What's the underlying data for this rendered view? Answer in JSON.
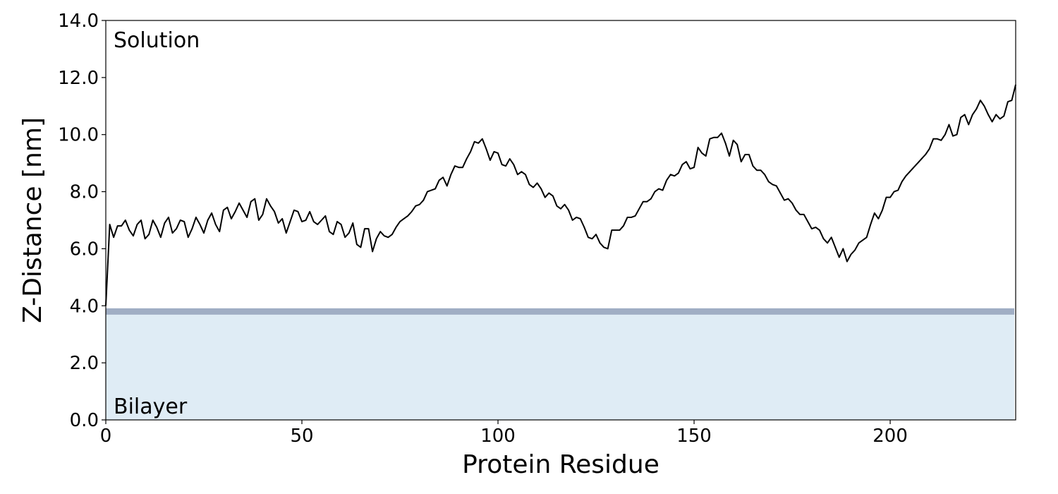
{
  "chart_data": {
    "type": "line",
    "xlabel": "Protein Residue",
    "ylabel": "Z-Distance [nm]",
    "annotations": [
      "Solution",
      "Bilayer"
    ],
    "bilayer_surface": 3.8,
    "bilayer_fill": "#dfecf5",
    "bilayer_edge": "#a0aec4",
    "color": "#000000",
    "xlim": [
      0,
      232
    ],
    "xticks": [
      0,
      50,
      100,
      150,
      200
    ],
    "ylim": [
      0,
      14
    ],
    "yticks": [
      {
        "value": 0,
        "label": "0.0"
      },
      {
        "value": 2,
        "label": "2.0"
      },
      {
        "value": 4,
        "label": "4.0"
      },
      {
        "value": 6,
        "label": "6.0"
      },
      {
        "value": 8,
        "label": "8.0"
      },
      {
        "value": 10,
        "label": "10.0"
      },
      {
        "value": 12,
        "label": "12.0"
      },
      {
        "value": 14,
        "label": "14.0"
      }
    ],
    "x": [
      0,
      1,
      2,
      3,
      4,
      5,
      6,
      7,
      8,
      9,
      10,
      11,
      12,
      13,
      14,
      15,
      16,
      17,
      18,
      19,
      20,
      21,
      22,
      23,
      24,
      25,
      26,
      27,
      28,
      29,
      30,
      31,
      32,
      33,
      34,
      35,
      36,
      37,
      38,
      39,
      40,
      41,
      42,
      43,
      44,
      45,
      46,
      47,
      48,
      49,
      50,
      51,
      52,
      53,
      54,
      55,
      56,
      57,
      58,
      59,
      60,
      61,
      62,
      63,
      64,
      65,
      66,
      67,
      68,
      69,
      70,
      71,
      72,
      73,
      74,
      75,
      76,
      77,
      78,
      79,
      80,
      81,
      82,
      83,
      84,
      85,
      86,
      87,
      88,
      89,
      90,
      91,
      92,
      93,
      94,
      95,
      96,
      97,
      98,
      99,
      100,
      101,
      102,
      103,
      104,
      105,
      106,
      107,
      108,
      109,
      110,
      111,
      112,
      113,
      114,
      115,
      116,
      117,
      118,
      119,
      120,
      121,
      122,
      123,
      124,
      125,
      126,
      127,
      128,
      129,
      130,
      131,
      132,
      133,
      134,
      135,
      136,
      137,
      138,
      139,
      140,
      141,
      142,
      143,
      144,
      145,
      146,
      147,
      148,
      149,
      150,
      151,
      152,
      153,
      154,
      155,
      156,
      157,
      158,
      159,
      160,
      161,
      162,
      163,
      164,
      165,
      166,
      167,
      168,
      169,
      170,
      171,
      172,
      173,
      174,
      175,
      176,
      177,
      178,
      179,
      180,
      181,
      182,
      183,
      184,
      185,
      186,
      187,
      188,
      189,
      190,
      191,
      192,
      193,
      194,
      195,
      196,
      197,
      198,
      199,
      200,
      201,
      202,
      203,
      204,
      205,
      206,
      207,
      208,
      209,
      210,
      211,
      212,
      213,
      214,
      215,
      216,
      217,
      218,
      219,
      220,
      221,
      222,
      223,
      224,
      225,
      226,
      227,
      228,
      229,
      230,
      231,
      232
    ],
    "values": [
      4.0,
      6.85,
      6.4,
      6.8,
      6.8,
      7.0,
      6.65,
      6.45,
      6.85,
      7.0,
      6.35,
      6.5,
      7.0,
      6.75,
      6.4,
      6.9,
      7.1,
      6.55,
      6.7,
      7.0,
      6.95,
      6.4,
      6.7,
      7.1,
      6.85,
      6.55,
      7.0,
      7.25,
      6.85,
      6.6,
      7.35,
      7.45,
      7.05,
      7.3,
      7.6,
      7.35,
      7.1,
      7.65,
      7.75,
      7.0,
      7.2,
      7.75,
      7.5,
      7.3,
      6.9,
      7.05,
      6.55,
      6.95,
      7.35,
      7.3,
      6.95,
      7.0,
      7.3,
      6.95,
      6.85,
      7.0,
      7.15,
      6.6,
      6.5,
      6.95,
      6.85,
      6.4,
      6.55,
      6.9,
      6.15,
      6.05,
      6.7,
      6.7,
      5.9,
      6.35,
      6.6,
      6.45,
      6.4,
      6.5,
      6.75,
      6.95,
      7.05,
      7.15,
      7.3,
      7.5,
      7.55,
      7.7,
      8.0,
      8.05,
      8.1,
      8.4,
      8.5,
      8.2,
      8.6,
      8.9,
      8.85,
      8.85,
      9.15,
      9.4,
      9.75,
      9.7,
      9.85,
      9.5,
      9.1,
      9.4,
      9.35,
      8.95,
      8.9,
      9.15,
      8.95,
      8.6,
      8.7,
      8.6,
      8.25,
      8.15,
      8.3,
      8.1,
      7.8,
      7.95,
      7.85,
      7.5,
      7.4,
      7.55,
      7.35,
      7.0,
      7.1,
      7.05,
      6.75,
      6.4,
      6.35,
      6.5,
      6.2,
      6.05,
      6.0,
      6.65,
      6.65,
      6.65,
      6.8,
      7.1,
      7.1,
      7.15,
      7.4,
      7.65,
      7.65,
      7.75,
      8.0,
      8.1,
      8.05,
      8.4,
      8.6,
      8.55,
      8.65,
      8.95,
      9.05,
      8.8,
      8.85,
      9.55,
      9.35,
      9.25,
      9.85,
      9.9,
      9.9,
      10.05,
      9.7,
      9.25,
      9.8,
      9.65,
      9.05,
      9.3,
      9.3,
      8.9,
      8.75,
      8.75,
      8.6,
      8.35,
      8.25,
      8.2,
      7.95,
      7.7,
      7.75,
      7.6,
      7.35,
      7.2,
      7.2,
      6.95,
      6.7,
      6.75,
      6.65,
      6.35,
      6.2,
      6.4,
      6.05,
      5.7,
      6.0,
      5.55,
      5.8,
      5.95,
      6.2,
      6.3,
      6.4,
      6.85,
      7.25,
      7.05,
      7.35,
      7.8,
      7.8,
      8.0,
      8.05,
      8.35,
      8.55,
      8.7,
      8.85,
      9.0,
      9.15,
      9.3,
      9.5,
      9.85,
      9.85,
      9.8,
      10.0,
      10.35,
      9.95,
      10.0,
      10.6,
      10.7,
      10.35,
      10.7,
      10.9,
      11.2,
      11.0,
      10.7,
      10.45,
      10.7,
      10.55,
      10.65,
      11.15,
      11.2,
      11.75
    ]
  }
}
